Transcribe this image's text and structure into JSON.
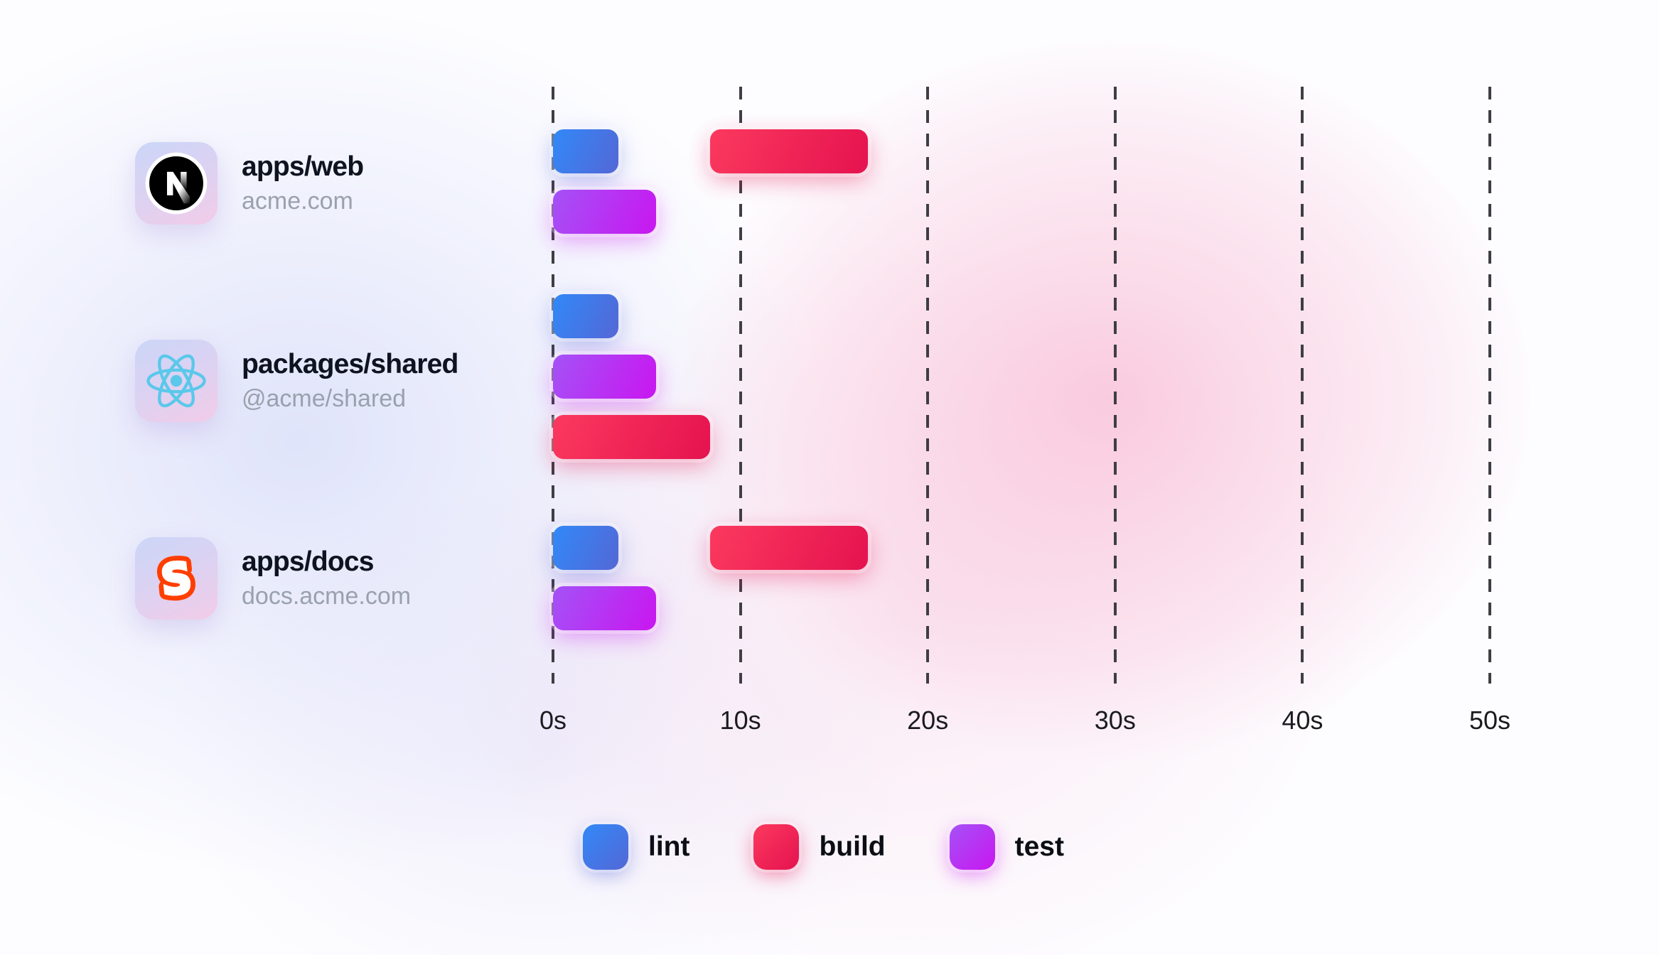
{
  "chart_data": {
    "type": "gantt",
    "description": "Monorepo task timeline: lint / build / test durations per package",
    "time_axis": {
      "unit": "seconds",
      "ticks": [
        0,
        10,
        20,
        30,
        40,
        50
      ],
      "tick_labels": [
        "0s",
        "10s",
        "20s",
        "30s",
        "40s",
        "50s"
      ],
      "min": 0,
      "max": 50,
      "gridlines": "dashed-vertical"
    },
    "rows": [
      {
        "package": "apps/web",
        "subtitle": "acme.com",
        "icon": "nextjs-icon",
        "tasks": [
          {
            "type": "lint",
            "start_s": 0,
            "end_s": 3.5,
            "lane": 0
          },
          {
            "type": "build",
            "start_s": 8.4,
            "end_s": 16.8,
            "lane": 0
          },
          {
            "type": "test",
            "start_s": 0,
            "end_s": 5.5,
            "lane": 1
          }
        ]
      },
      {
        "package": "packages/shared",
        "subtitle": "@acme/shared",
        "icon": "react-icon",
        "tasks": [
          {
            "type": "lint",
            "start_s": 0,
            "end_s": 3.5,
            "lane": 0
          },
          {
            "type": "test",
            "start_s": 0,
            "end_s": 5.5,
            "lane": 1
          },
          {
            "type": "build",
            "start_s": 0,
            "end_s": 8.4,
            "lane": 2
          }
        ]
      },
      {
        "package": "apps/docs",
        "subtitle": "docs.acme.com",
        "icon": "svelte-icon",
        "tasks": [
          {
            "type": "lint",
            "start_s": 0,
            "end_s": 3.5,
            "lane": 0
          },
          {
            "type": "build",
            "start_s": 8.4,
            "end_s": 16.8,
            "lane": 0
          },
          {
            "type": "test",
            "start_s": 0,
            "end_s": 5.5,
            "lane": 1
          }
        ]
      }
    ]
  },
  "legend": {
    "items": [
      {
        "label": "lint",
        "type": "lint"
      },
      {
        "label": "build",
        "type": "build"
      },
      {
        "label": "test",
        "type": "test"
      }
    ]
  },
  "colors": {
    "lint": {
      "from": "#3189F8",
      "to": "#5467D6"
    },
    "build": {
      "from": "#FB395E",
      "to": "#E5124F"
    },
    "test": {
      "from": "#A452F6",
      "to": "#C916F0"
    },
    "gridline": "#3E3E44",
    "axis_text": "#1B1B1F",
    "package_title_text": "#0E1320",
    "package_subtitle_text": "#9AA1AD",
    "react_icon": "#5AC8EA",
    "svelte_icon": "#FF3E00",
    "nextjs_icon_bg": "#000000",
    "card_gradient_from": "#CBD6F8",
    "card_gradient_to": "#F2CCE8"
  }
}
